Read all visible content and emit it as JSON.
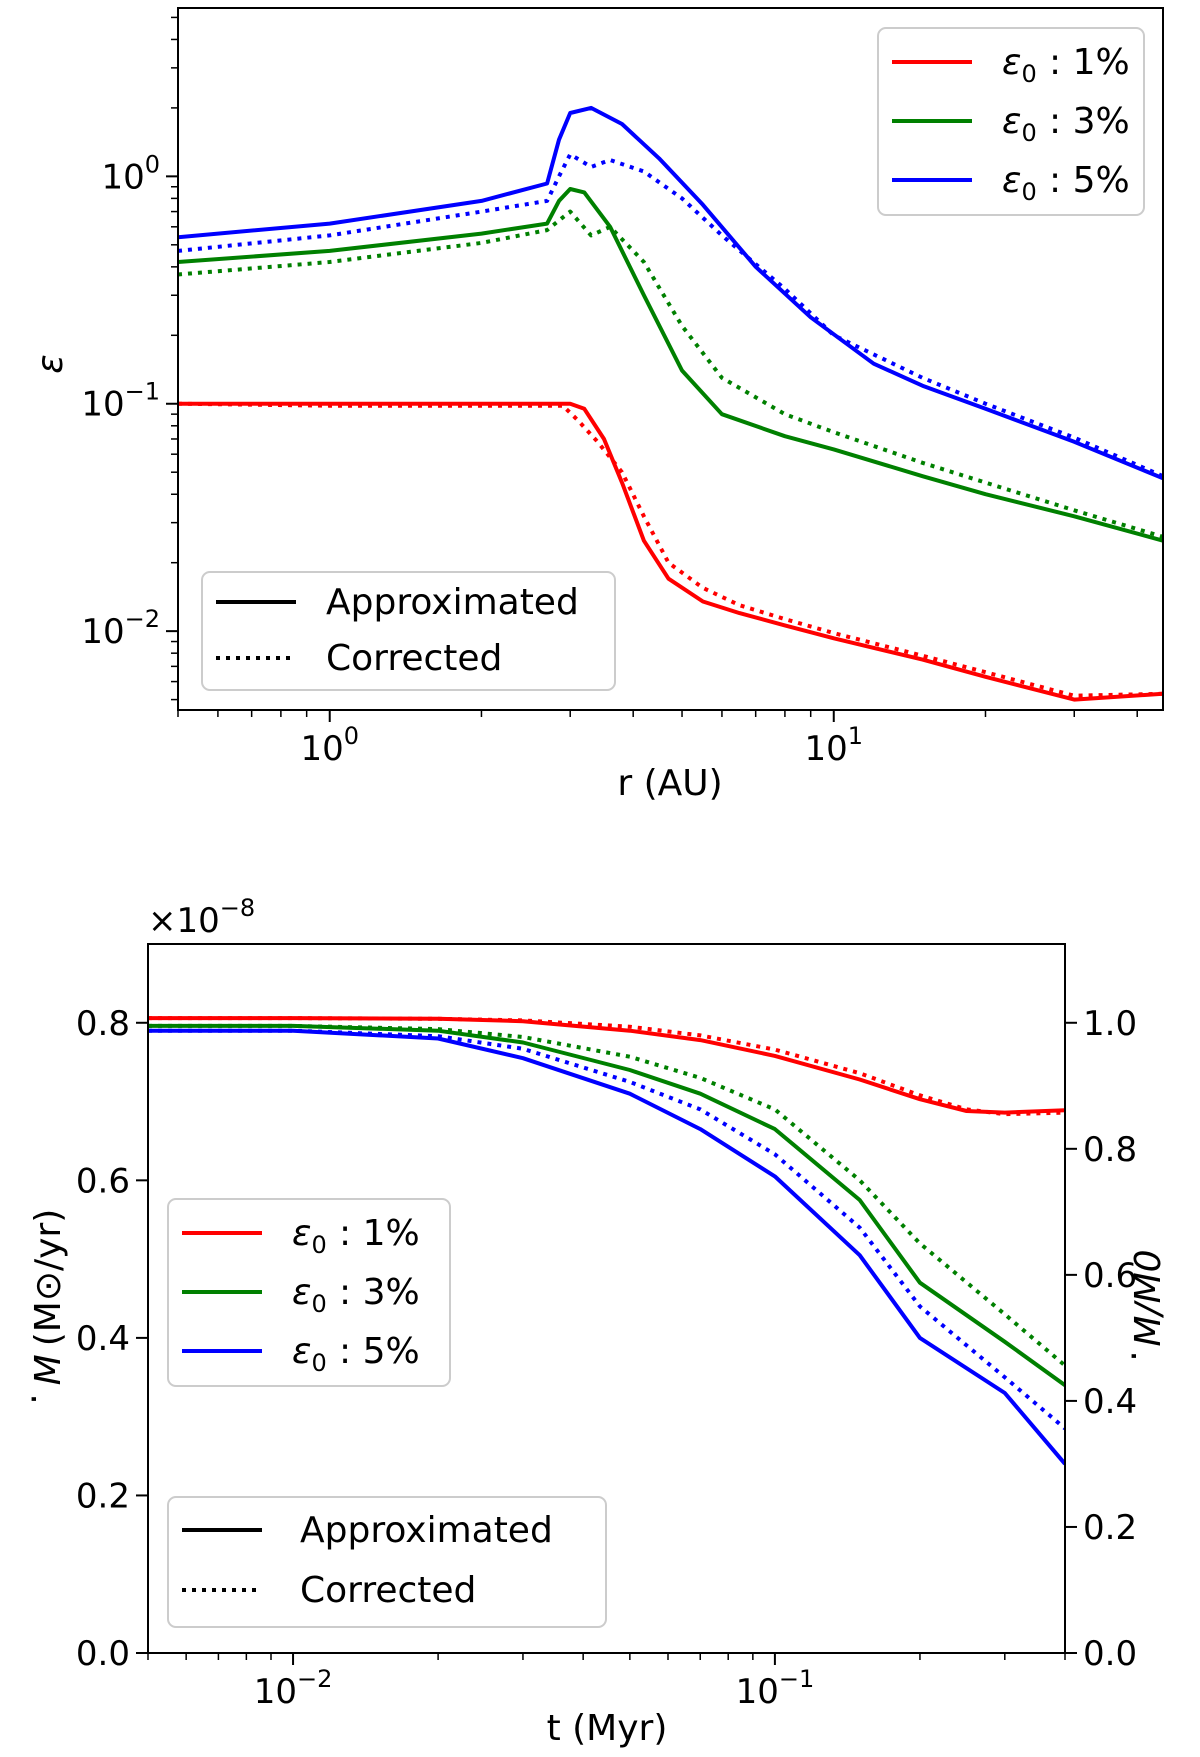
{
  "chart_data": [
    {
      "type": "line",
      "xscale": "log",
      "yscale": "log",
      "xlim": [
        0.5,
        45
      ],
      "ylim": [
        0.0045,
        5.5
      ],
      "xlabel": "r (AU)",
      "ylabel": "ε",
      "xticks": [
        {
          "value": 1,
          "mant": "10",
          "exp": "0"
        },
        {
          "value": 10,
          "mant": "10",
          "exp": "1"
        }
      ],
      "yticks": [
        {
          "value": 0.01,
          "mant": "10",
          "exp": "−2"
        },
        {
          "value": 0.1,
          "mant": "10",
          "exp": "−1"
        },
        {
          "value": 1,
          "mant": "10",
          "exp": "0"
        }
      ],
      "legend_series": {
        "position": "top-right",
        "entries": [
          {
            "label": ": 1%",
            "color": "#ff0000"
          },
          {
            "label": ": 3%",
            "color": "#008000"
          },
          {
            "label": ": 5%",
            "color": "#0000ff"
          }
        ]
      },
      "legend_style": {
        "position": "bottom-left",
        "entries": [
          {
            "label": "Approximated",
            "style": "solid"
          },
          {
            "label": "Corrected",
            "style": "dotted"
          }
        ]
      },
      "series": [
        {
          "name": "ε0: 1% Approximated",
          "color": "#ff0000",
          "style": "solid",
          "x": [
            0.5,
            1.0,
            2.0,
            3.0,
            3.2,
            3.5,
            3.8,
            4.2,
            4.7,
            5.5,
            6.5,
            8,
            10,
            15,
            20,
            30,
            45
          ],
          "y": [
            0.1,
            0.1,
            0.1,
            0.1,
            0.095,
            0.07,
            0.045,
            0.025,
            0.017,
            0.0135,
            0.012,
            0.0106,
            0.0093,
            0.0075,
            0.0063,
            0.005,
            0.0053
          ]
        },
        {
          "name": "ε0: 1% Corrected",
          "color": "#ff0000",
          "style": "dotted",
          "x": [
            0.5,
            1.0,
            2.0,
            2.9,
            3.1,
            3.4,
            3.8,
            4.2,
            4.7,
            5.5,
            6.5,
            8,
            10,
            15,
            20,
            30,
            45
          ],
          "y": [
            0.1,
            0.098,
            0.098,
            0.098,
            0.085,
            0.068,
            0.05,
            0.032,
            0.02,
            0.0155,
            0.013,
            0.0113,
            0.0098,
            0.0078,
            0.0066,
            0.0052,
            0.0053
          ]
        },
        {
          "name": "ε0: 3% Approximated",
          "color": "#008000",
          "style": "solid",
          "x": [
            0.5,
            1.0,
            2.0,
            2.7,
            2.85,
            3.0,
            3.2,
            3.6,
            4.2,
            5.0,
            6.0,
            8,
            10,
            15,
            20,
            30,
            45
          ],
          "y": [
            0.42,
            0.47,
            0.56,
            0.62,
            0.78,
            0.88,
            0.85,
            0.6,
            0.3,
            0.14,
            0.09,
            0.072,
            0.063,
            0.048,
            0.04,
            0.032,
            0.025
          ]
        },
        {
          "name": "ε0: 3% Corrected",
          "color": "#008000",
          "style": "dotted",
          "x": [
            0.5,
            1.0,
            2.0,
            2.7,
            2.9,
            3.0,
            3.3,
            3.6,
            4.2,
            5.0,
            6.0,
            8,
            10,
            15,
            20,
            30,
            45
          ],
          "y": [
            0.37,
            0.42,
            0.51,
            0.58,
            0.66,
            0.7,
            0.55,
            0.6,
            0.42,
            0.22,
            0.13,
            0.09,
            0.075,
            0.055,
            0.045,
            0.034,
            0.026
          ]
        },
        {
          "name": "ε0: 5% Approximated",
          "color": "#0000ff",
          "style": "solid",
          "x": [
            0.5,
            1.0,
            2.0,
            2.7,
            2.85,
            3.0,
            3.3,
            3.8,
            4.5,
            5.5,
            7.0,
            9,
            12,
            15,
            20,
            30,
            45
          ],
          "y": [
            0.54,
            0.62,
            0.78,
            0.93,
            1.45,
            1.9,
            2.0,
            1.7,
            1.2,
            0.75,
            0.4,
            0.24,
            0.15,
            0.12,
            0.095,
            0.068,
            0.047
          ]
        },
        {
          "name": "ε0: 5% Corrected",
          "color": "#0000ff",
          "style": "dotted",
          "x": [
            0.5,
            1.0,
            2.0,
            2.7,
            2.85,
            3.0,
            3.3,
            3.6,
            4.2,
            5.0,
            6.0,
            8,
            10,
            15,
            20,
            30,
            45
          ],
          "y": [
            0.47,
            0.55,
            0.7,
            0.78,
            1.0,
            1.25,
            1.1,
            1.18,
            1.05,
            0.8,
            0.55,
            0.32,
            0.2,
            0.13,
            0.1,
            0.071,
            0.048
          ]
        }
      ]
    },
    {
      "type": "line",
      "xscale": "log",
      "yscale": "linear",
      "xlim": [
        0.005,
        0.4
      ],
      "ylim": [
        0,
        0.9
      ],
      "right_ylim": [
        0,
        1.125
      ],
      "xlabel": "t (Myr)",
      "ylabel": "(M⊙/yr)",
      "ylabel_symbol": "M",
      "right_ylabel": "/M0",
      "right_ylabel_symbol": "M",
      "offset_text": "×10",
      "offset_exp": "−8",
      "xticks": [
        {
          "value": 0.01,
          "mant": "10",
          "exp": "−2"
        },
        {
          "value": 0.1,
          "mant": "10",
          "exp": "−1"
        }
      ],
      "yticks": [
        {
          "value": 0,
          "label": "0.0"
        },
        {
          "value": 0.2,
          "label": "0.2"
        },
        {
          "value": 0.4,
          "label": "0.4"
        },
        {
          "value": 0.6,
          "label": "0.6"
        },
        {
          "value": 0.8,
          "label": "0.8"
        }
      ],
      "right_yticks": [
        {
          "value": 0,
          "label": "0.0"
        },
        {
          "value": 0.2,
          "label": "0.2"
        },
        {
          "value": 0.4,
          "label": "0.4"
        },
        {
          "value": 0.6,
          "label": "0.6"
        },
        {
          "value": 0.8,
          "label": "0.8"
        },
        {
          "value": 1.0,
          "label": "1.0"
        }
      ],
      "legend_series": {
        "position": "center-left",
        "entries": [
          {
            "label": ": 1%",
            "color": "#ff0000"
          },
          {
            "label": ": 3%",
            "color": "#008000"
          },
          {
            "label": ": 5%",
            "color": "#0000ff"
          }
        ]
      },
      "legend_style": {
        "position": "bottom-left",
        "entries": [
          {
            "label": "Approximated",
            "style": "solid"
          },
          {
            "label": "Corrected",
            "style": "dotted"
          }
        ]
      },
      "series": [
        {
          "name": "ε0: 1% Approximated",
          "color": "#ff0000",
          "style": "solid",
          "x": [
            0.005,
            0.01,
            0.02,
            0.03,
            0.05,
            0.07,
            0.1,
            0.15,
            0.2,
            0.25,
            0.3,
            0.4
          ],
          "y": [
            0.806,
            0.806,
            0.805,
            0.802,
            0.79,
            0.778,
            0.758,
            0.728,
            0.703,
            0.688,
            0.686,
            0.689
          ]
        },
        {
          "name": "ε0: 1% Corrected",
          "color": "#ff0000",
          "style": "dotted",
          "x": [
            0.005,
            0.01,
            0.02,
            0.03,
            0.05,
            0.07,
            0.1,
            0.15,
            0.2,
            0.25,
            0.3,
            0.4
          ],
          "y": [
            0.806,
            0.806,
            0.805,
            0.803,
            0.795,
            0.784,
            0.766,
            0.736,
            0.708,
            0.69,
            0.684,
            0.686
          ]
        },
        {
          "name": "ε0: 3% Approximated",
          "color": "#008000",
          "style": "solid",
          "x": [
            0.005,
            0.01,
            0.02,
            0.03,
            0.05,
            0.07,
            0.1,
            0.15,
            0.2,
            0.3,
            0.4
          ],
          "y": [
            0.796,
            0.796,
            0.79,
            0.775,
            0.74,
            0.71,
            0.665,
            0.575,
            0.47,
            0.395,
            0.34
          ]
        },
        {
          "name": "ε0: 3% Corrected",
          "color": "#008000",
          "style": "dotted",
          "x": [
            0.005,
            0.01,
            0.02,
            0.03,
            0.05,
            0.07,
            0.1,
            0.15,
            0.2,
            0.3,
            0.4
          ],
          "y": [
            0.796,
            0.796,
            0.792,
            0.782,
            0.757,
            0.73,
            0.69,
            0.6,
            0.52,
            0.43,
            0.365
          ]
        },
        {
          "name": "ε0: 5% Approximated",
          "color": "#0000ff",
          "style": "solid",
          "x": [
            0.005,
            0.01,
            0.02,
            0.03,
            0.05,
            0.07,
            0.1,
            0.15,
            0.2,
            0.3,
            0.4
          ],
          "y": [
            0.79,
            0.79,
            0.78,
            0.755,
            0.71,
            0.665,
            0.605,
            0.505,
            0.4,
            0.33,
            0.24
          ]
        },
        {
          "name": "ε0: 5% Corrected",
          "color": "#0000ff",
          "style": "dotted",
          "x": [
            0.005,
            0.01,
            0.02,
            0.03,
            0.05,
            0.07,
            0.1,
            0.15,
            0.2,
            0.3,
            0.4
          ],
          "y": [
            0.79,
            0.79,
            0.783,
            0.767,
            0.725,
            0.69,
            0.633,
            0.54,
            0.44,
            0.35,
            0.285
          ]
        }
      ]
    }
  ]
}
